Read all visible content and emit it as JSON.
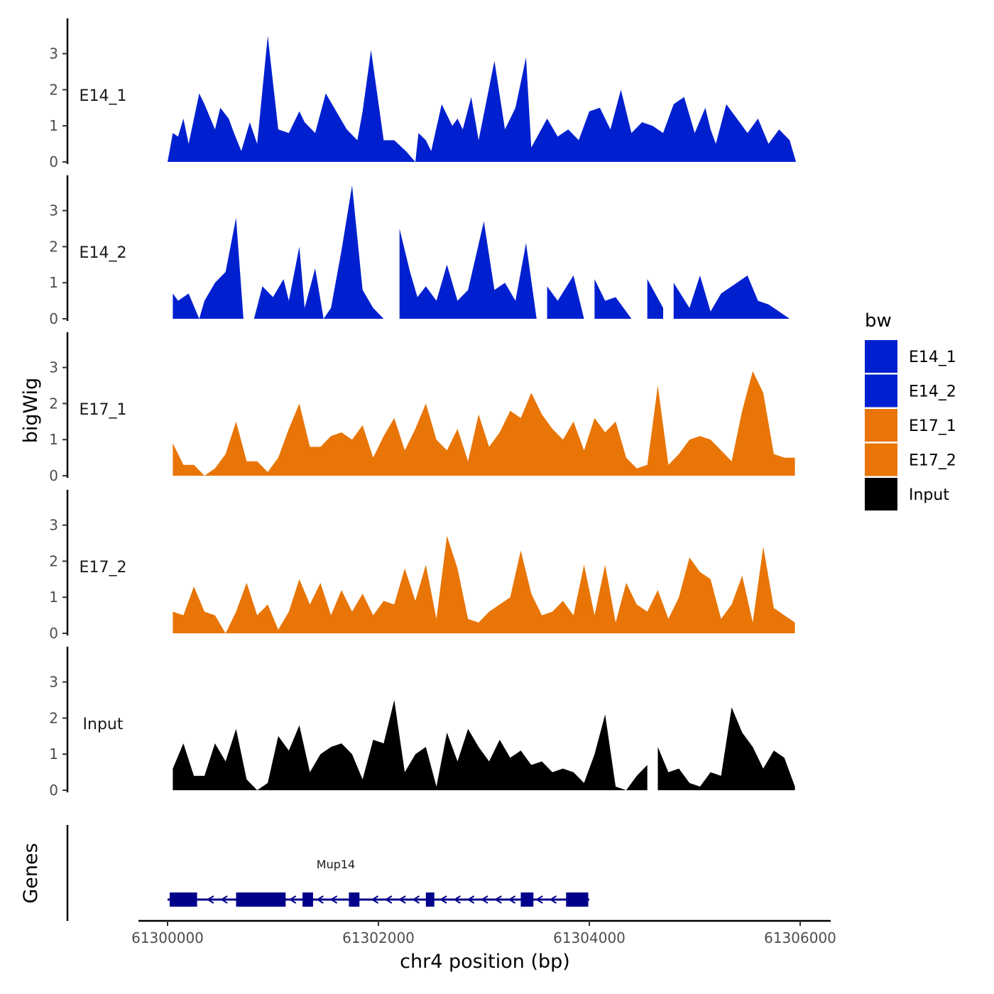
{
  "chart_data": {
    "type": "area",
    "xlabel": "chr4 position (bp)",
    "ylabel": "bigWig",
    "genes_label": "Genes",
    "x_range": [
      61300000,
      61306000
    ],
    "x_ticks": [
      61300000,
      61302000,
      61304000,
      61306000
    ],
    "y_range": [
      0,
      3.9
    ],
    "y_ticks": [
      0,
      1,
      2,
      3
    ],
    "legend": {
      "title": "bw",
      "entries": [
        {
          "label": "E14_1",
          "color": "#0020D0"
        },
        {
          "label": "E14_2",
          "color": "#0020D0"
        },
        {
          "label": "E17_1",
          "color": "#E87506"
        },
        {
          "label": "E17_2",
          "color": "#E87506"
        },
        {
          "label": "Input",
          "color": "#000000"
        }
      ]
    },
    "tracks": [
      {
        "name": "E14_1",
        "color": "#0020D0",
        "x": [
          61300000,
          61300050,
          61300100,
          61300150,
          61300200,
          61300300,
          61300350,
          61300450,
          61300500,
          61300580,
          61300630,
          61300700,
          61300780,
          61300850,
          61300950,
          61301050,
          61301150,
          61301250,
          61301300,
          61301400,
          61301500,
          61301600,
          61301700,
          61301800,
          61301850,
          61301930,
          61302050,
          61302150,
          61302260,
          61302350,
          61302380,
          61302450,
          61302500,
          61302600,
          61302700,
          61302750,
          61302800,
          61302880,
          61302950,
          61303100,
          61303200,
          61303300,
          61303400,
          61303450,
          61303600,
          61303700,
          61303800,
          61303900,
          61304000,
          61304100,
          61304200,
          61304300,
          61304400,
          61304500,
          61304600,
          61304700,
          61304800,
          61304900,
          61305000,
          61305100,
          61305150,
          61305200,
          61305300,
          61305400,
          61305500,
          61305600,
          61305700,
          61305800,
          61305900,
          61305960
        ],
        "y": [
          0,
          0.8,
          0.7,
          1.2,
          0.5,
          1.9,
          1.6,
          0.9,
          1.5,
          1.2,
          0.8,
          0.3,
          1.1,
          0.5,
          3.5,
          0.9,
          0.8,
          1.4,
          1.1,
          0.8,
          1.9,
          1.4,
          0.9,
          0.6,
          1.4,
          3.1,
          0.6,
          0.6,
          0.3,
          0,
          0.8,
          0.6,
          0.3,
          1.6,
          1.0,
          1.2,
          0.9,
          1.8,
          0.6,
          2.8,
          0.9,
          1.5,
          2.9,
          0.4,
          1.2,
          0.7,
          0.9,
          0.6,
          1.4,
          1.5,
          0.9,
          2.0,
          0.8,
          1.1,
          1.0,
          0.8,
          1.6,
          1.8,
          0.8,
          1.5,
          0.9,
          0.5,
          1.6,
          1.2,
          0.8,
          1.2,
          0.5,
          0.9,
          0.6,
          0
        ]
      },
      {
        "name": "E14_2",
        "color": "#0020D0",
        "x": [
          61300050,
          61300100,
          61300200,
          61300300,
          61300350,
          61300450,
          61300550,
          61300650,
          61300720,
          61300820,
          61300900,
          61301000,
          61301100,
          61301150,
          61301250,
          61301300,
          61301400,
          61301480,
          61301550,
          61301650,
          61301750,
          61301850,
          61301950,
          61302050,
          61302200,
          61302300,
          61302370,
          61302450,
          61302550,
          61302650,
          61302750,
          61302850,
          61303000,
          61303100,
          61303200,
          61303300,
          61303400,
          61303500,
          61303600,
          61303700,
          61303850,
          61303950,
          61304050,
          61304150,
          61304250,
          61304400,
          61304550,
          61304700,
          61304800,
          61304950,
          61305050,
          61305150,
          61305250,
          61305400,
          61305500,
          61305600,
          61305700,
          61305800,
          61305900
        ],
        "y": [
          0.7,
          0.5,
          0.7,
          0,
          0.5,
          1.0,
          1.3,
          2.8,
          0,
          0,
          0.9,
          0.6,
          1.1,
          0.5,
          2.0,
          0.3,
          1.4,
          0,
          0.3,
          1.9,
          3.7,
          0.8,
          0.3,
          0,
          2.5,
          1.3,
          0.6,
          0.9,
          0.5,
          1.5,
          0.5,
          0.8,
          2.7,
          0.8,
          1.0,
          0.5,
          2.1,
          0,
          0.9,
          0.5,
          1.2,
          0,
          1.1,
          0.5,
          0.6,
          0,
          1.1,
          0.3,
          1.0,
          0.3,
          1.2,
          0.2,
          0.7,
          1.0,
          1.2,
          0.5,
          0.4,
          0.2,
          0
        ],
        "gaps": [
          [
            61300720,
            61300820
          ],
          [
            61302050,
            61302200
          ],
          [
            61303500,
            61303600
          ],
          [
            61303950,
            61304050
          ],
          [
            61304400,
            61304550
          ],
          [
            61304700,
            61304800
          ]
        ]
      },
      {
        "name": "E17_1",
        "color": "#E87506",
        "x": [
          61300050,
          61300150,
          61300250,
          61300350,
          61300450,
          61300550,
          61300650,
          61300750,
          61300850,
          61300950,
          61301050,
          61301150,
          61301250,
          61301350,
          61301450,
          61301550,
          61301650,
          61301750,
          61301850,
          61301950,
          61302050,
          61302150,
          61302250,
          61302350,
          61302450,
          61302550,
          61302650,
          61302750,
          61302850,
          61302950,
          61303050,
          61303150,
          61303250,
          61303350,
          61303450,
          61303550,
          61303650,
          61303750,
          61303850,
          61303950,
          61304050,
          61304150,
          61304250,
          61304350,
          61304450,
          61304550,
          61304650,
          61304750,
          61304850,
          61304950,
          61305050,
          61305150,
          61305250,
          61305350,
          61305450,
          61305550,
          61305650,
          61305750,
          61305850,
          61305950
        ],
        "y": [
          0.9,
          0.3,
          0.3,
          0,
          0.2,
          0.6,
          1.5,
          0.4,
          0.4,
          0.1,
          0.5,
          1.3,
          2.0,
          0.8,
          0.8,
          1.1,
          1.2,
          1.0,
          1.4,
          0.5,
          1.1,
          1.6,
          0.7,
          1.3,
          2.0,
          1.0,
          0.7,
          1.3,
          0.4,
          1.7,
          0.8,
          1.2,
          1.8,
          1.6,
          2.3,
          1.7,
          1.3,
          1.0,
          1.5,
          0.7,
          1.6,
          1.2,
          1.5,
          0.5,
          0.2,
          0.3,
          2.5,
          0.3,
          0.6,
          1.0,
          1.1,
          1.0,
          0.7,
          0.4,
          1.8,
          2.9,
          2.3,
          0.6,
          0.5,
          0.5
        ]
      },
      {
        "name": "E17_2",
        "color": "#E87506",
        "x": [
          61300050,
          61300150,
          61300250,
          61300350,
          61300450,
          61300550,
          61300650,
          61300750,
          61300850,
          61300950,
          61301050,
          61301150,
          61301250,
          61301350,
          61301450,
          61301550,
          61301650,
          61301750,
          61301850,
          61301950,
          61302050,
          61302150,
          61302250,
          61302350,
          61302450,
          61302550,
          61302650,
          61302750,
          61302850,
          61302950,
          61303050,
          61303150,
          61303250,
          61303350,
          61303450,
          61303550,
          61303650,
          61303750,
          61303850,
          61303950,
          61304050,
          61304150,
          61304250,
          61304350,
          61304450,
          61304550,
          61304650,
          61304750,
          61304850,
          61304950,
          61305050,
          61305150,
          61305250,
          61305350,
          61305450,
          61305550,
          61305650,
          61305750,
          61305850,
          61305950
        ],
        "y": [
          0.6,
          0.5,
          1.3,
          0.6,
          0.5,
          0,
          0.6,
          1.4,
          0.5,
          0.8,
          0.1,
          0.6,
          1.5,
          0.8,
          1.4,
          0.5,
          1.2,
          0.6,
          1.1,
          0.5,
          0.9,
          0.8,
          1.8,
          0.9,
          1.9,
          0.4,
          2.7,
          1.8,
          0.4,
          0.3,
          0.6,
          0.8,
          1.0,
          2.3,
          1.1,
          0.5,
          0.6,
          0.9,
          0.5,
          1.9,
          0.5,
          1.9,
          0.3,
          1.4,
          0.8,
          0.6,
          1.2,
          0.4,
          1.0,
          2.1,
          1.7,
          1.5,
          0.4,
          0.8,
          1.6,
          0.3,
          2.4,
          0.7,
          0.5,
          0.3
        ]
      },
      {
        "name": "Input",
        "color": "#000000",
        "x": [
          61300050,
          61300150,
          61300250,
          61300350,
          61300450,
          61300550,
          61300650,
          61300750,
          61300850,
          61300950,
          61301050,
          61301150,
          61301250,
          61301350,
          61301450,
          61301550,
          61301650,
          61301750,
          61301850,
          61301950,
          61302050,
          61302150,
          61302250,
          61302350,
          61302450,
          61302550,
          61302650,
          61302750,
          61302850,
          61302950,
          61303050,
          61303150,
          61303250,
          61303350,
          61303450,
          61303550,
          61303650,
          61303750,
          61303850,
          61303950,
          61304050,
          61304150,
          61304250,
          61304350,
          61304450,
          61304550,
          61304650,
          61304750,
          61304850,
          61304950,
          61305050,
          61305150,
          61305250,
          61305350,
          61305450,
          61305550,
          61305650,
          61305750,
          61305850,
          61305950
        ],
        "y": [
          0.6,
          1.3,
          0.4,
          0.4,
          1.3,
          0.8,
          1.7,
          0.3,
          0,
          0.2,
          1.5,
          1.1,
          1.8,
          0.5,
          1.0,
          1.2,
          1.3,
          1.0,
          0.3,
          1.4,
          1.3,
          2.5,
          0.5,
          1.0,
          1.2,
          0.1,
          1.6,
          0.8,
          1.7,
          1.2,
          0.8,
          1.4,
          0.9,
          1.1,
          0.7,
          0.8,
          0.5,
          0.6,
          0.5,
          0.2,
          1.0,
          2.1,
          0.1,
          0,
          0.4,
          0.7,
          1.2,
          0.5,
          0.6,
          0.2,
          0.1,
          0.5,
          0.4,
          2.3,
          1.6,
          1.2,
          0.6,
          1.1,
          0.9,
          0.1
        ],
        "gaps": [
          [
            61304550,
            61304650
          ]
        ]
      }
    ],
    "gene": {
      "name": "Mup14",
      "color": "#00008B",
      "start": 61300000,
      "end": 61304000,
      "strand": "-",
      "exons": [
        [
          61300020,
          61300280
        ],
        [
          61300650,
          61301120
        ],
        [
          61301280,
          61301380
        ],
        [
          61301720,
          61301820
        ],
        [
          61302450,
          61302530
        ],
        [
          61303350,
          61303470
        ],
        [
          61303780,
          61303990
        ]
      ]
    }
  }
}
